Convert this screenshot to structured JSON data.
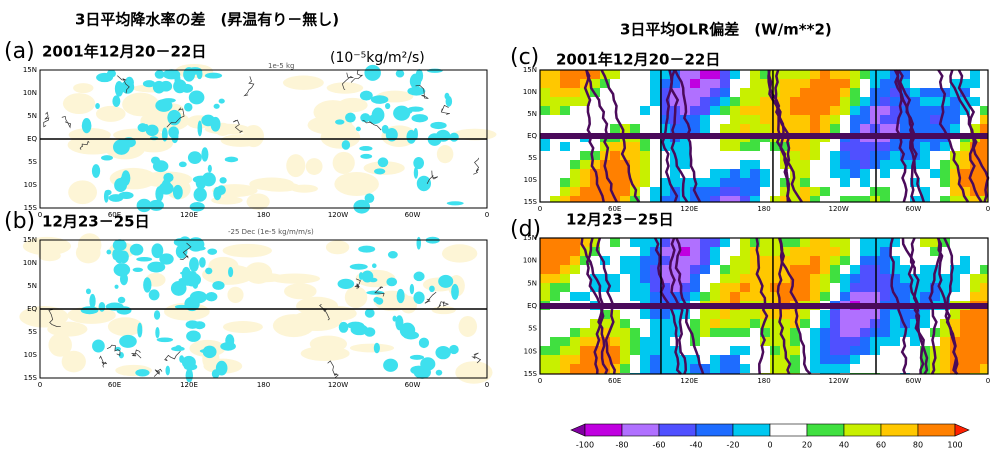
{
  "titles": {
    "left": "3日平均降水率の差　(昇温有り－無し)",
    "right": "3日平均OLR偏差　(W/m**2)"
  },
  "panels": [
    {
      "label": "(a)",
      "date": "2001年12月20－22日",
      "unit": "(10⁻⁵kg/m²/s)",
      "note": "1e-5 kg"
    },
    {
      "label": "(b)",
      "date": "12月23－25日",
      "note": "-25 Dec  (1e-5 kg/m/m/s)"
    },
    {
      "label": "(c)",
      "date": "2001年12月20－22日"
    },
    {
      "label": "(d)",
      "date": "12月23－25日"
    }
  ],
  "lat_labels": [
    "15N",
    "10N",
    "5N",
    "EQ",
    "5S",
    "10S",
    "15S"
  ],
  "lon_labels": [
    "0",
    "60E",
    "120E",
    "180",
    "120W",
    "60W",
    "0"
  ],
  "colorbar": {
    "ticks": [
      -100,
      -80,
      -60,
      -40,
      -20,
      0,
      20,
      40,
      60,
      80,
      100
    ],
    "colors": [
      "#8000a0",
      "#c000e0",
      "#b070ff",
      "#5050ff",
      "#1e6cff",
      "#00c8f0",
      "#ffffff",
      "#40e040",
      "#c8f000",
      "#ffc800",
      "#ff8000",
      "#ff2000"
    ]
  }
}
